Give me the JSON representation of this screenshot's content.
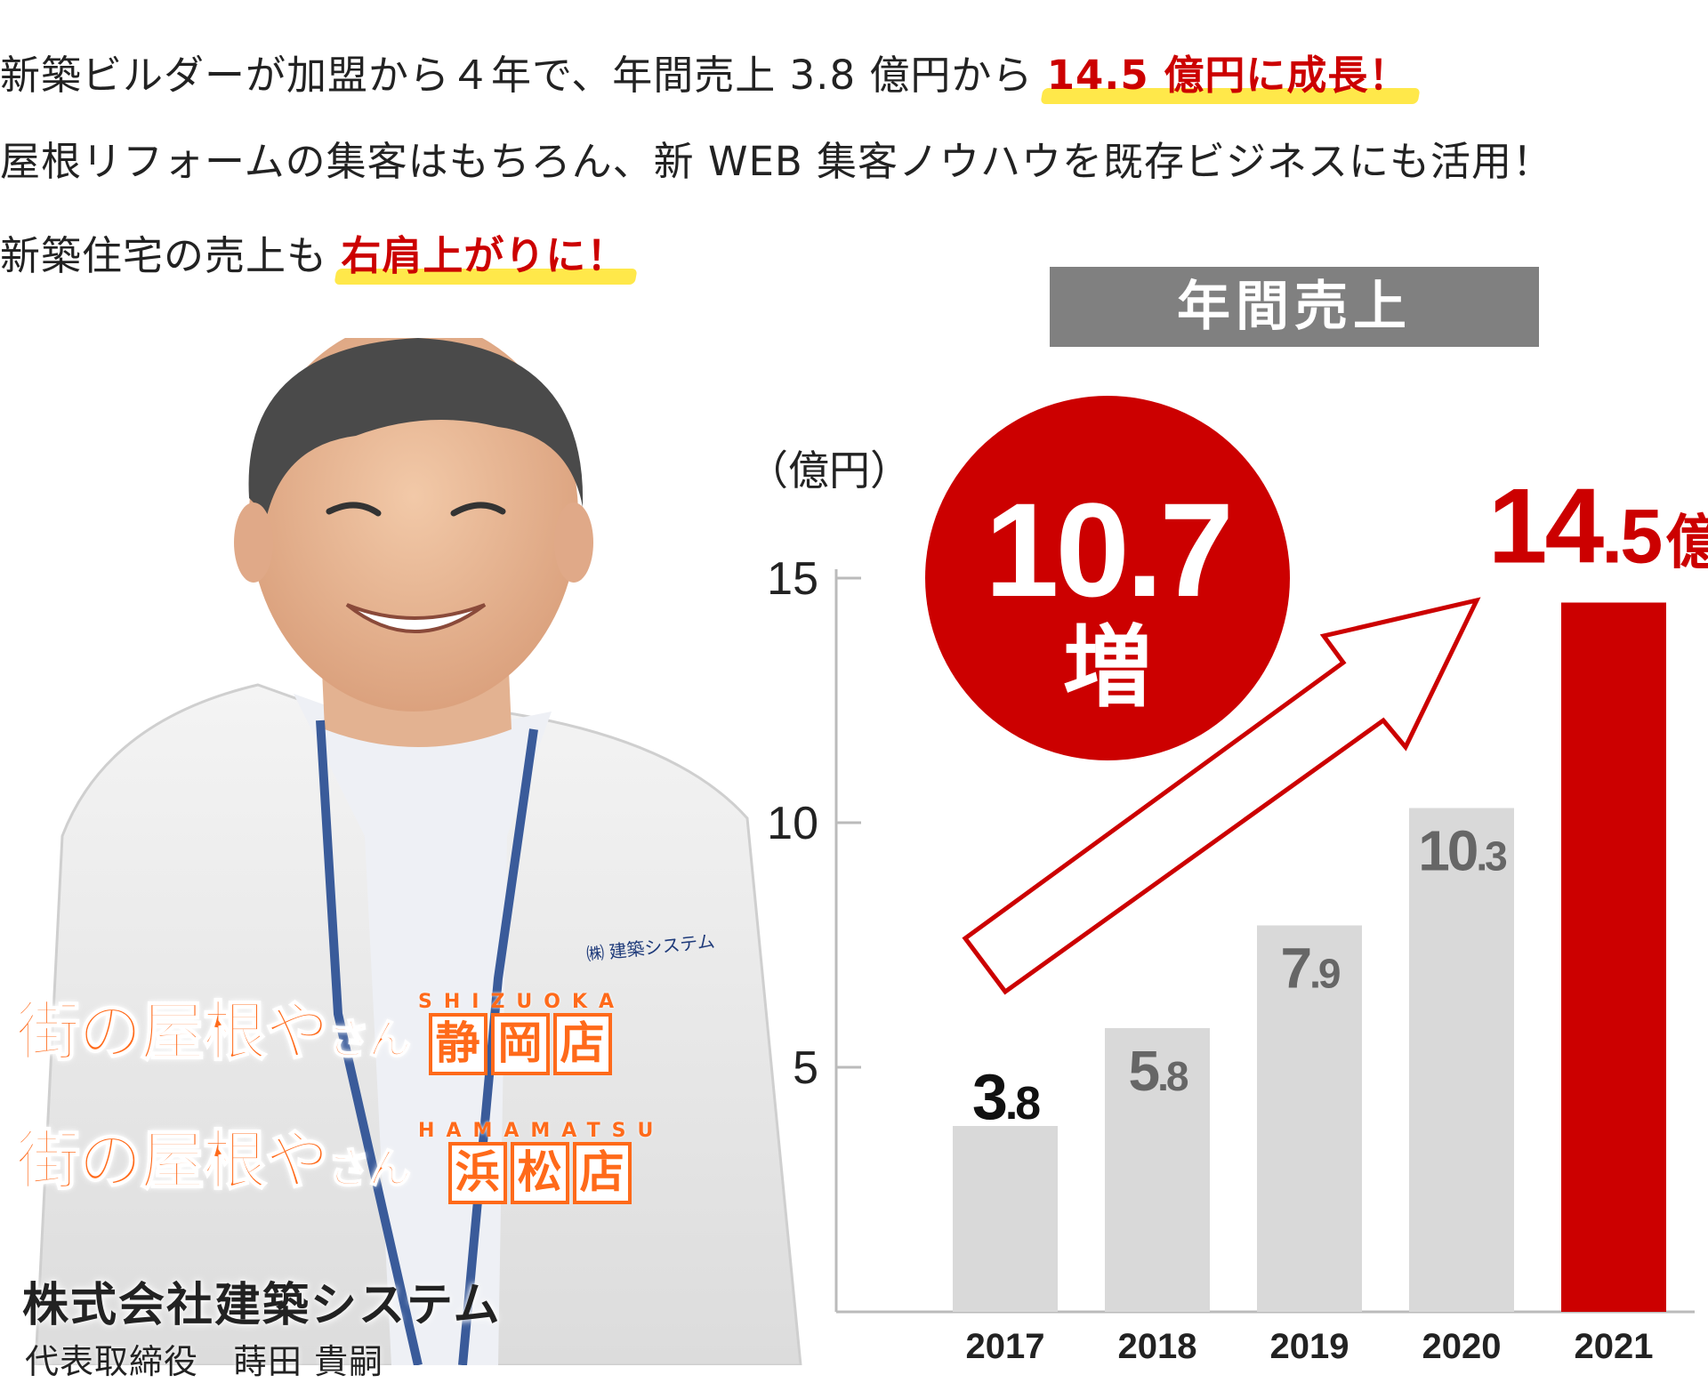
{
  "headline": {
    "line1_plain": "新築ビルダーが加盟から４年で、年間売上 3.8 億円から",
    "line1_strong": "14.5 億円に成長！",
    "line2": "屋根リフォームの集客はもちろん、新 WEB 集客ノウハウを既存ビジネスにも活用！",
    "line3_plain": "新築住宅の売上も",
    "line3_strong": "右肩上がりに！"
  },
  "chart_title": "年間売上",
  "increase_badge": {
    "number": "10.7",
    "label": "増"
  },
  "logos": [
    {
      "main": "街の屋根や",
      "small": "さん",
      "romaji": "SHIZUOKA",
      "store": [
        "静",
        "岡",
        "店"
      ]
    },
    {
      "main": "街の屋根や",
      "small": "さん",
      "romaji": "HAMAMATSU",
      "store": [
        "浜",
        "松",
        "店"
      ]
    }
  ],
  "company_name": "株式会社建築システム",
  "representative": "代表取締役　蒔田 貴嗣",
  "jacket_text": "㈱ 建築システム",
  "colors": {
    "accent": "#cc0000",
    "bar": "#d9d9d9",
    "axis": "#bbbbbb",
    "logo": "#ff6a1a",
    "highlight": "#ffe84a"
  },
  "chart_data": {
    "type": "bar",
    "title": "年間売上",
    "ylabel": "（億円）",
    "ylim": [
      0,
      15
    ],
    "yticks": [
      5,
      10,
      15
    ],
    "categories": [
      "2017",
      "2018",
      "2019",
      "2020",
      "2021"
    ],
    "values": [
      3.8,
      5.8,
      7.9,
      10.3,
      14.5
    ],
    "value_labels": [
      {
        "int": "3",
        "dec": ".8",
        "suffix": ""
      },
      {
        "int": "5",
        "dec": ".8",
        "suffix": ""
      },
      {
        "int": "7",
        "dec": ".9",
        "suffix": ""
      },
      {
        "int": "10",
        "dec": ".3",
        "suffix": ""
      },
      {
        "int": "14",
        "dec": ".5",
        "suffix": "億"
      }
    ],
    "highlight_index": 4,
    "legend": "none",
    "grid": false
  }
}
